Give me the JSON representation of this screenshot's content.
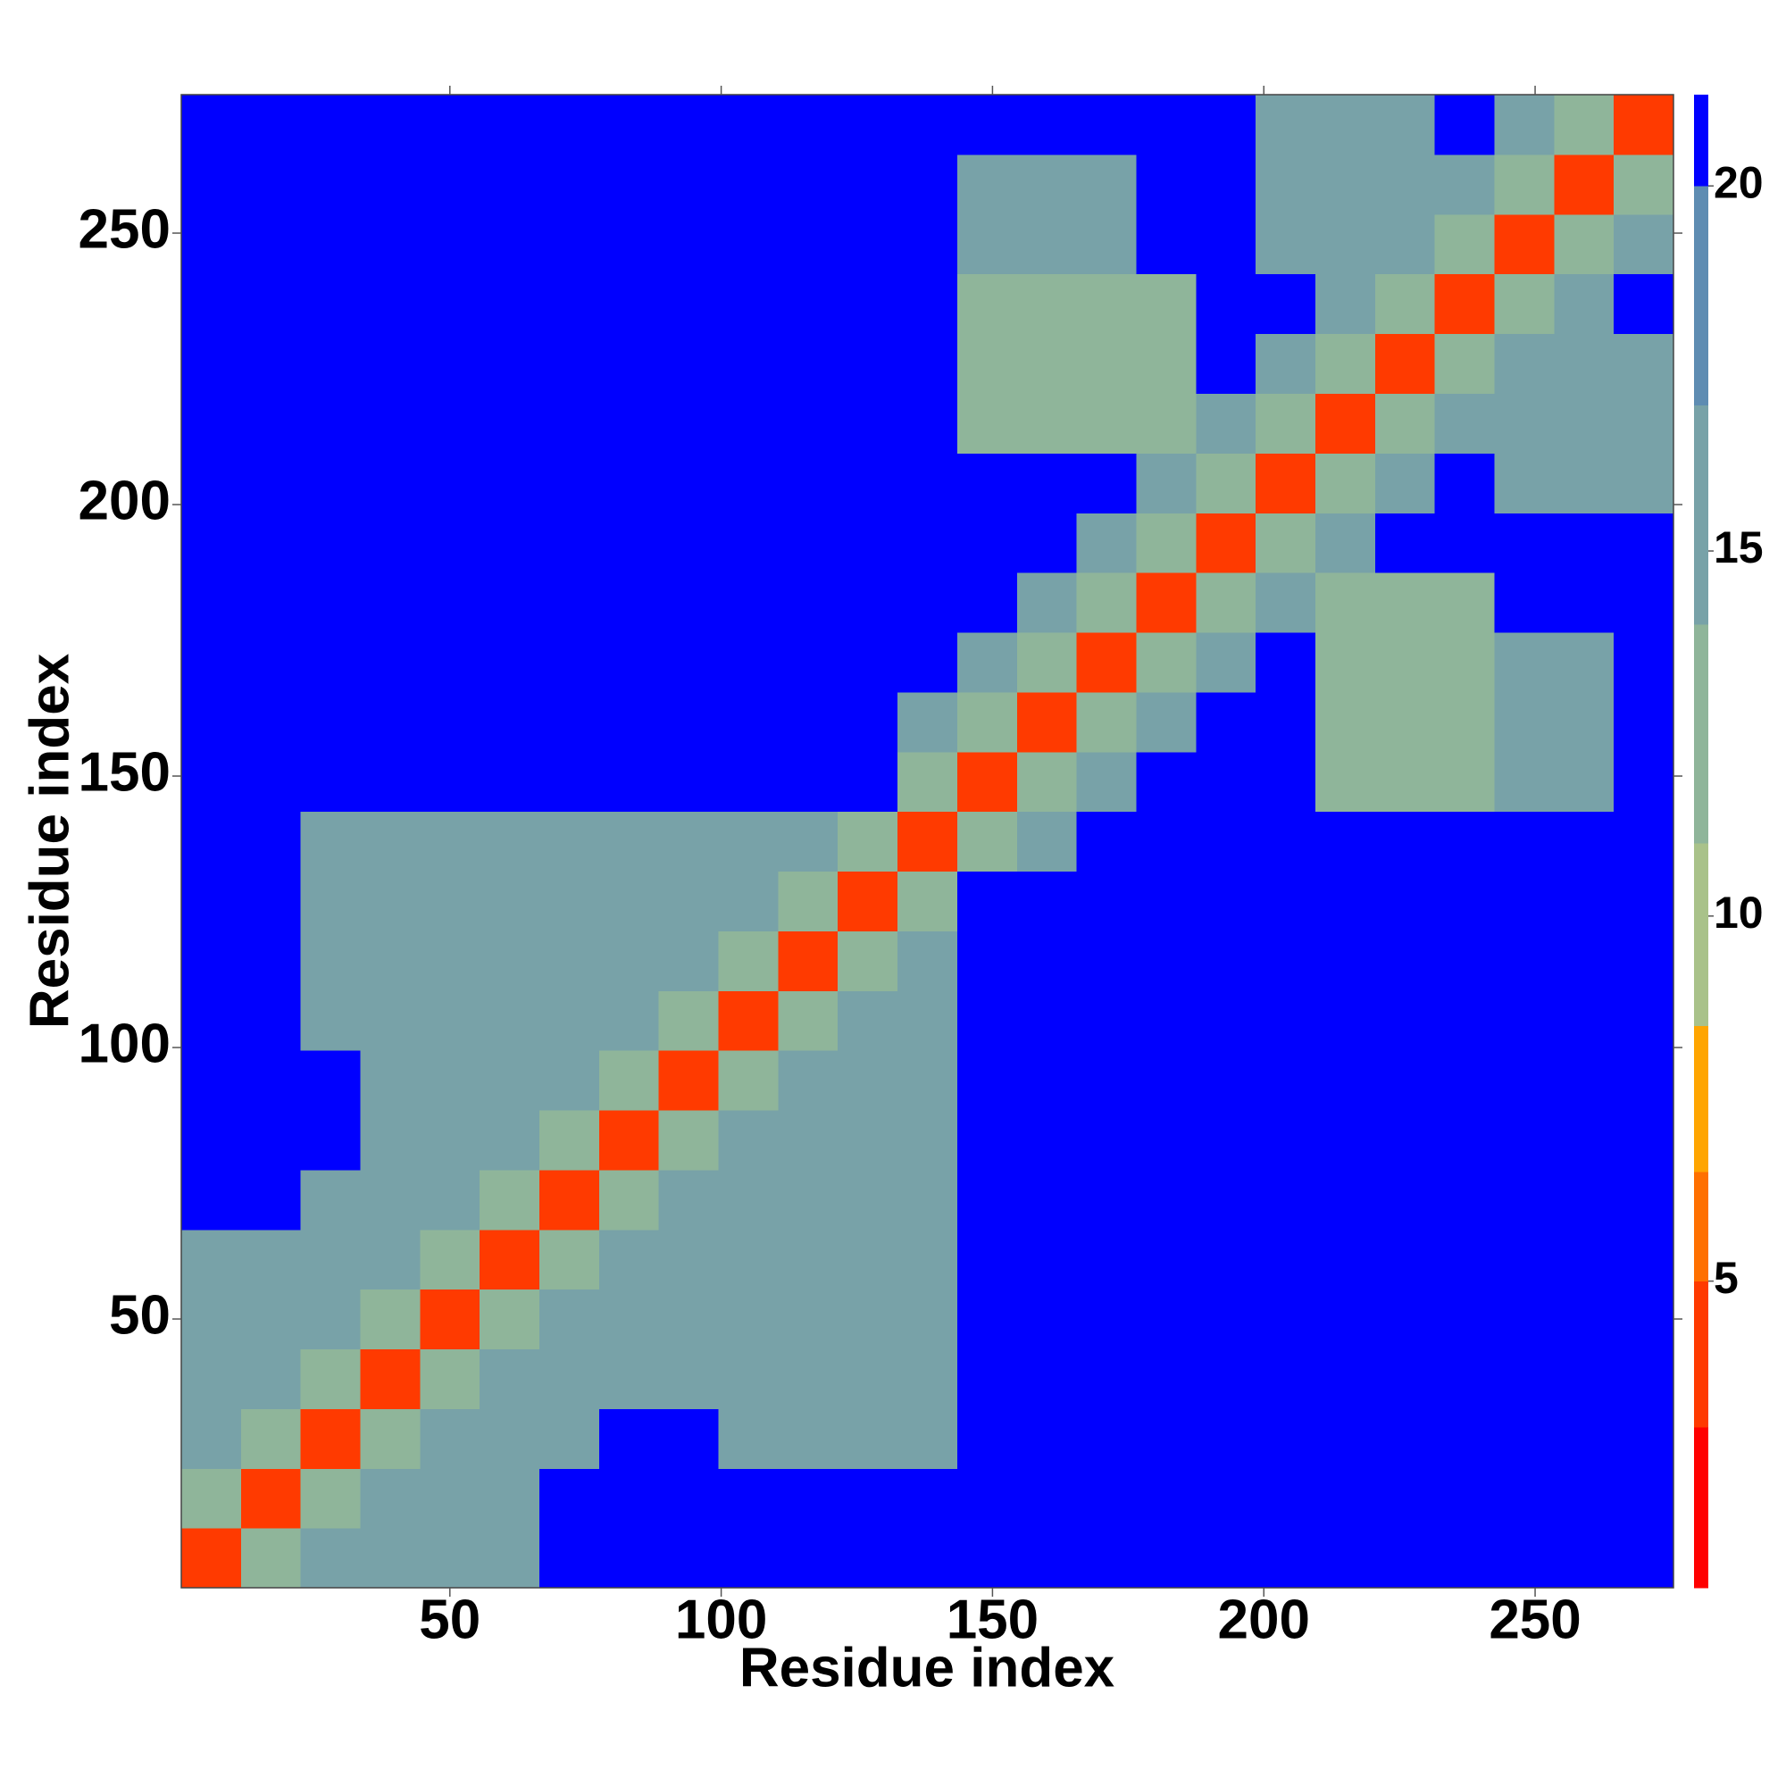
{
  "chart_data": {
    "type": "heatmap",
    "xlabel": "Residue index",
    "ylabel": "Residue index",
    "xlim": [
      0.5,
      275.5
    ],
    "ylim": [
      0.5,
      275.5
    ],
    "xticks": [
      50,
      100,
      150,
      200,
      250
    ],
    "yticks": [
      50,
      100,
      150,
      200,
      250
    ],
    "bins": [
      0.5,
      11.5,
      22.5,
      33.5,
      44.5,
      55.5,
      66.5,
      77.5,
      88.5,
      99.5,
      110.5,
      121.5,
      132.5,
      143.5,
      154.5,
      165.5,
      176.5,
      187.5,
      198.5,
      209.5,
      220.5,
      231.5,
      242.5,
      253.5,
      264.5,
      275.5
    ],
    "z": [
      [
        4,
        12,
        15,
        15,
        15,
        17,
        21,
        21,
        21,
        21,
        21,
        21,
        21,
        21,
        21,
        21,
        21,
        21,
        21,
        21,
        21,
        21,
        21,
        21,
        21
      ],
      [
        12,
        4,
        12,
        15,
        15,
        15,
        21,
        21,
        21,
        21,
        21,
        21,
        21,
        21,
        21,
        21,
        21,
        21,
        21,
        21,
        21,
        21,
        21,
        21,
        21
      ],
      [
        15,
        12,
        4,
        12,
        15,
        15,
        16,
        21,
        21,
        16,
        16,
        16,
        16,
        21,
        21,
        21,
        21,
        21,
        21,
        21,
        21,
        21,
        21,
        21,
        21
      ],
      [
        15,
        15,
        12,
        4,
        12,
        15,
        16,
        16,
        16,
        16,
        16,
        16,
        16,
        21,
        21,
        21,
        21,
        21,
        21,
        21,
        21,
        21,
        21,
        21,
        21
      ],
      [
        15,
        15,
        15,
        12,
        4,
        12,
        16,
        16,
        16,
        16,
        16,
        16,
        16,
        21,
        21,
        21,
        21,
        21,
        21,
        21,
        21,
        21,
        21,
        21,
        21
      ],
      [
        17,
        15,
        15,
        15,
        12,
        4,
        12,
        16,
        16,
        16,
        16,
        16,
        16,
        21,
        21,
        21,
        21,
        21,
        21,
        21,
        21,
        21,
        21,
        21,
        21
      ],
      [
        21,
        21,
        16,
        16,
        16,
        12,
        4,
        12,
        16,
        16,
        16,
        16,
        16,
        21,
        21,
        21,
        21,
        21,
        21,
        21,
        21,
        21,
        21,
        21,
        21
      ],
      [
        21,
        21,
        21,
        16,
        16,
        16,
        12,
        4,
        12,
        15,
        15,
        15,
        15,
        21,
        21,
        21,
        21,
        21,
        21,
        21,
        21,
        21,
        21,
        21,
        21
      ],
      [
        21,
        21,
        21,
        16,
        16,
        16,
        16,
        12,
        4,
        12,
        15,
        15,
        15,
        21,
        21,
        21,
        21,
        21,
        21,
        21,
        21,
        21,
        21,
        21,
        21
      ],
      [
        21,
        21,
        16,
        16,
        16,
        16,
        16,
        15,
        12,
        4,
        12,
        15,
        15,
        21,
        21,
        21,
        21,
        21,
        21,
        21,
        21,
        21,
        21,
        21,
        21
      ],
      [
        21,
        21,
        16,
        16,
        16,
        16,
        16,
        15,
        15,
        12,
        4,
        12,
        15,
        21,
        21,
        21,
        21,
        21,
        21,
        21,
        21,
        21,
        21,
        21,
        21
      ],
      [
        21,
        21,
        16,
        16,
        16,
        16,
        16,
        15,
        15,
        15,
        12,
        4,
        12,
        21,
        21,
        21,
        21,
        21,
        21,
        21,
        21,
        21,
        21,
        21,
        21
      ],
      [
        21,
        21,
        16,
        16,
        16,
        16,
        16,
        15,
        15,
        15,
        15,
        12,
        4,
        12,
        15,
        21,
        21,
        21,
        21,
        21,
        21,
        21,
        21,
        21,
        21
      ],
      [
        21,
        21,
        21,
        21,
        21,
        21,
        21,
        21,
        21,
        21,
        21,
        21,
        12,
        4,
        12,
        15,
        21,
        21,
        21,
        14,
        14,
        14,
        17,
        17,
        21
      ],
      [
        21,
        21,
        21,
        21,
        21,
        21,
        21,
        21,
        21,
        21,
        21,
        21,
        15,
        12,
        4,
        12,
        15,
        21,
        21,
        14,
        14,
        14,
        17,
        17,
        21
      ],
      [
        21,
        21,
        21,
        21,
        21,
        21,
        21,
        21,
        21,
        21,
        21,
        21,
        21,
        15,
        12,
        4,
        12,
        15,
        21,
        14,
        14,
        14,
        17,
        17,
        21
      ],
      [
        21,
        21,
        21,
        21,
        21,
        21,
        21,
        21,
        21,
        21,
        21,
        21,
        21,
        21,
        15,
        12,
        4,
        12,
        15,
        14,
        14,
        14,
        21,
        21,
        21
      ],
      [
        21,
        21,
        21,
        21,
        21,
        21,
        21,
        21,
        21,
        21,
        21,
        21,
        21,
        21,
        21,
        15,
        12,
        4,
        12,
        15,
        21,
        21,
        21,
        21,
        21
      ],
      [
        21,
        21,
        21,
        21,
        21,
        21,
        21,
        21,
        21,
        21,
        21,
        21,
        21,
        21,
        21,
        21,
        15,
        12,
        4,
        12,
        15,
        21,
        16,
        16,
        16
      ],
      [
        21,
        21,
        21,
        21,
        21,
        21,
        21,
        21,
        21,
        21,
        21,
        21,
        21,
        14,
        14,
        14,
        14,
        15,
        12,
        4,
        12,
        15,
        16,
        16,
        16
      ],
      [
        21,
        21,
        21,
        21,
        21,
        21,
        21,
        21,
        21,
        21,
        21,
        21,
        21,
        14,
        14,
        14,
        14,
        21,
        15,
        12,
        4,
        12,
        15,
        16,
        16
      ],
      [
        21,
        21,
        21,
        21,
        21,
        21,
        21,
        21,
        21,
        21,
        21,
        21,
        21,
        14,
        14,
        14,
        14,
        21,
        21,
        15,
        12,
        4,
        12,
        15,
        21
      ],
      [
        21,
        21,
        21,
        21,
        21,
        21,
        21,
        21,
        21,
        21,
        21,
        21,
        21,
        17,
        17,
        17,
        21,
        21,
        16,
        16,
        15,
        12,
        4,
        12,
        15
      ],
      [
        21,
        21,
        21,
        21,
        21,
        21,
        21,
        21,
        21,
        21,
        21,
        21,
        21,
        17,
        17,
        17,
        21,
        21,
        16,
        16,
        16,
        15,
        12,
        4,
        12
      ],
      [
        21,
        21,
        21,
        21,
        21,
        21,
        21,
        21,
        21,
        21,
        21,
        21,
        21,
        21,
        21,
        21,
        21,
        21,
        16,
        16,
        16,
        21,
        15,
        12,
        4
      ]
    ],
    "colorbar": {
      "lim": [
        0.8,
        21.25
      ],
      "ticks": [
        5,
        10,
        15,
        20
      ],
      "bands": [
        0.8,
        3,
        5,
        6.5,
        8.5,
        11,
        14,
        17,
        20,
        21.25
      ],
      "colors": [
        "#ff0000",
        "#ff3a00",
        "#ff7000",
        "#ffa500",
        "#a9c28a",
        "#8fb59a",
        "#78a2a8",
        "#5e8cb2",
        "#0000ff"
      ]
    }
  }
}
